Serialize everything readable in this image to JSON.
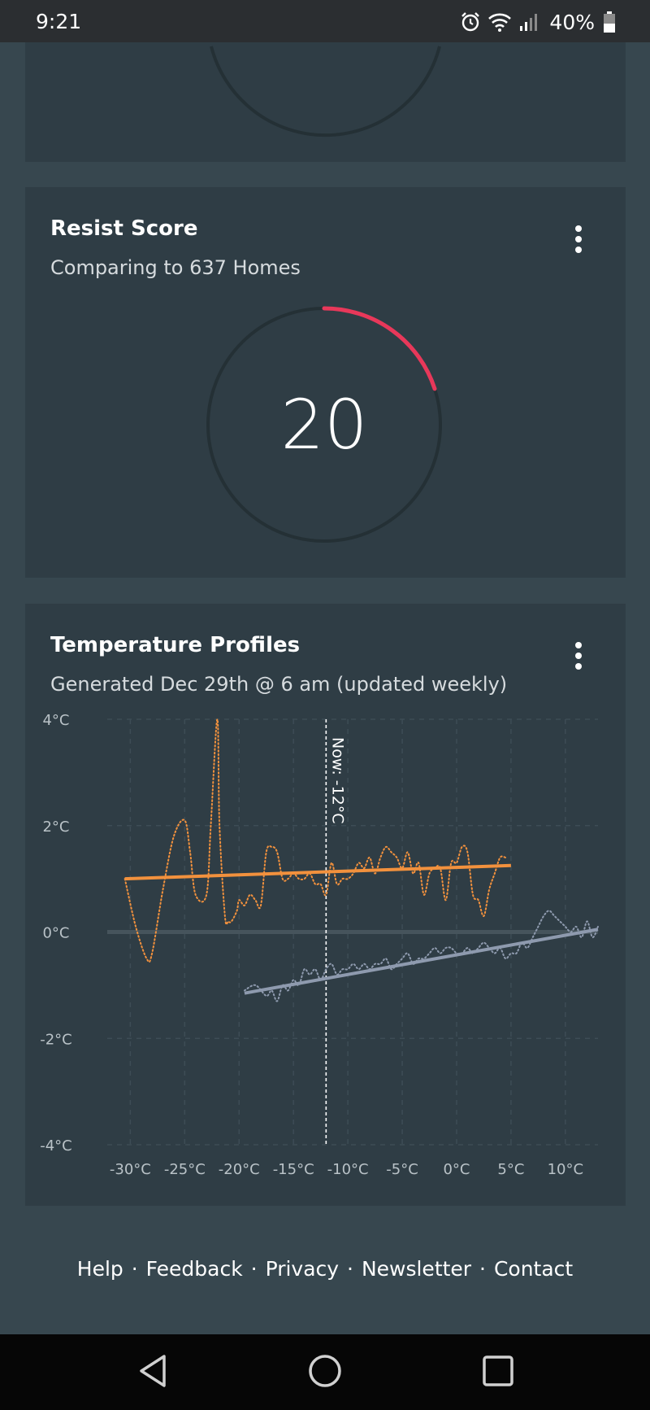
{
  "status": {
    "time": "9:21",
    "battery": "40%",
    "icons": [
      "alarm-icon",
      "wifi-icon",
      "signal-icon",
      "battery-icon"
    ]
  },
  "resist": {
    "title": "Resist Score",
    "subtitle": "Comparing to 637 Homes",
    "score": "20",
    "score_fraction": 0.2,
    "accent": "#e8385a"
  },
  "temperature": {
    "title": "Temperature Profiles",
    "subtitle": "Generated Dec 29th @ 6 am (updated weekly)"
  },
  "chart_data": {
    "type": "line",
    "xlabel": "",
    "ylabel": "",
    "x_ticks": [
      "-30°C",
      "-25°C",
      "-20°C",
      "-15°C",
      "-10°C",
      "-5°C",
      "0°C",
      "5°C",
      "10°C"
    ],
    "y_ticks": [
      "4°C",
      "2°C",
      "0°C",
      "-2°C",
      "-4°C"
    ],
    "xlim": [
      -31,
      13
    ],
    "ylim": [
      -4,
      4
    ],
    "grid": true,
    "annotation": {
      "x": -12,
      "label": "Now: -12°C"
    },
    "colors": {
      "orange": "#f2913d",
      "grey": "#8e9aae"
    },
    "series": [
      {
        "style": "dotted",
        "color": "orange",
        "x": [
          -30.5,
          -29.5,
          -28.5,
          -28,
          -27,
          -26,
          -25,
          -24.5,
          -24,
          -23,
          -22.6,
          -22,
          -21.8,
          -21.3,
          -21,
          -20.7,
          -20.2,
          -20,
          -19.5,
          -19,
          -18.5,
          -18,
          -17.5,
          -17,
          -16.5,
          -16,
          -15.5,
          -15,
          -14.5,
          -14,
          -13.5,
          -13,
          -12.5,
          -12,
          -11.5,
          -11,
          -10.5,
          -10,
          -9.5,
          -9,
          -8.5,
          -8,
          -7.5,
          -7,
          -6.5,
          -6,
          -5.5,
          -5,
          -4.5,
          -4,
          -3.5,
          -3,
          -2.5,
          -2,
          -1.5,
          -1,
          -0.5,
          0,
          0.5,
          1,
          1.5,
          2,
          2.5,
          3,
          3.5,
          4,
          4.5
        ],
        "values": [
          1.0,
          0.1,
          -0.5,
          -0.4,
          0.8,
          1.8,
          2.1,
          1.5,
          0.7,
          0.7,
          2.0,
          4.0,
          2.0,
          0.3,
          0.2,
          0.2,
          0.4,
          0.6,
          0.5,
          0.7,
          0.6,
          0.5,
          1.5,
          1.6,
          1.5,
          1.0,
          1.0,
          1.1,
          1.0,
          1.0,
          1.1,
          0.9,
          0.9,
          0.7,
          1.3,
          0.9,
          1.0,
          1.0,
          1.1,
          1.3,
          1.2,
          1.4,
          1.1,
          1.4,
          1.6,
          1.5,
          1.4,
          1.2,
          1.5,
          1.1,
          1.3,
          0.7,
          1.1,
          1.2,
          1.2,
          0.6,
          1.3,
          1.3,
          1.6,
          1.5,
          0.7,
          0.6,
          0.3,
          0.8,
          1.1,
          1.4,
          1.4
        ]
      },
      {
        "style": "solid",
        "color": "orange",
        "x": [
          -30.5,
          5
        ],
        "values": [
          1.0,
          1.25
        ]
      },
      {
        "style": "dotted",
        "color": "grey",
        "x": [
          -19.5,
          -18.5,
          -17.5,
          -17,
          -16.5,
          -16,
          -15.5,
          -15,
          -14.5,
          -14,
          -13.5,
          -13,
          -12.5,
          -12,
          -11.5,
          -11,
          -10.5,
          -10,
          -9.5,
          -9,
          -8.5,
          -8,
          -7.5,
          -7,
          -6.5,
          -6,
          -5.5,
          -5,
          -4.5,
          -4,
          -3.5,
          -3,
          -2.5,
          -2,
          -1.5,
          -1,
          -0.5,
          0,
          0.5,
          1,
          1.5,
          2,
          2.5,
          3,
          3.5,
          4,
          4.5,
          5,
          5.5,
          6,
          6.5,
          7,
          7.5,
          8,
          8.5,
          9,
          9.5,
          10,
          10.5,
          11,
          11.5,
          12,
          12.5,
          13
        ],
        "values": [
          -1.1,
          -1.0,
          -1.2,
          -1.1,
          -1.3,
          -1.0,
          -1.1,
          -0.9,
          -1.0,
          -0.7,
          -0.8,
          -0.7,
          -0.9,
          -0.7,
          -0.6,
          -0.8,
          -0.7,
          -0.7,
          -0.6,
          -0.7,
          -0.6,
          -0.7,
          -0.6,
          -0.6,
          -0.5,
          -0.7,
          -0.6,
          -0.5,
          -0.4,
          -0.6,
          -0.5,
          -0.5,
          -0.4,
          -0.3,
          -0.4,
          -0.3,
          -0.3,
          -0.4,
          -0.4,
          -0.3,
          -0.4,
          -0.3,
          -0.2,
          -0.3,
          -0.4,
          -0.3,
          -0.5,
          -0.4,
          -0.4,
          -0.2,
          -0.3,
          -0.1,
          0.1,
          0.3,
          0.4,
          0.3,
          0.2,
          0.1,
          0.0,
          0.1,
          -0.1,
          0.2,
          -0.1,
          0.1
        ]
      },
      {
        "style": "solid",
        "color": "grey",
        "x": [
          -19.5,
          13
        ],
        "values": [
          -1.15,
          0.05
        ]
      }
    ]
  },
  "footer": {
    "help": "Help",
    "feedback": "Feedback",
    "privacy": "Privacy",
    "newsletter": "Newsletter",
    "contact": "Contact",
    "separator": "·"
  },
  "navbar": {
    "icons": [
      "back-icon",
      "home-icon",
      "recents-icon"
    ]
  }
}
